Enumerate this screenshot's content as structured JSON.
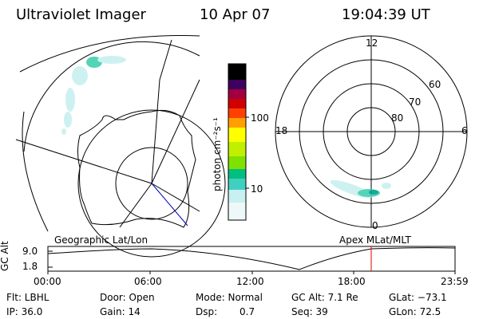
{
  "header": {
    "instrument": "Ultraviolet Imager",
    "date": "10 Apr 07",
    "time": "19:04:39 UT"
  },
  "colorbar": {
    "label": "photon cm⁻²s⁻¹",
    "ticks": [
      "100",
      "10"
    ]
  },
  "polar_plot": {
    "hour_labels": {
      "top": "12",
      "left": "18",
      "right": "6",
      "bottom": "0"
    },
    "lat_labels": [
      "60",
      "70",
      "80"
    ]
  },
  "labels": {
    "geo": "Geographic Lat/Lon",
    "apex": "Apex MLat/MLT"
  },
  "timeline": {
    "ylabel": "GC Alt",
    "ticks_y": [
      "9.0",
      "1.8"
    ],
    "ticks_x": [
      "00:00",
      "06:00",
      "12:00",
      "18:00",
      "23:59"
    ]
  },
  "footer": {
    "row1": {
      "flt": "Flt: LBHL",
      "door": "Door: Open",
      "mode": "Mode: Normal",
      "gcalt": "GC Alt: 7.1 Re",
      "glat": "GLat: −73.1"
    },
    "row2": {
      "ip": "IP: 36.0",
      "gain": "Gain: 14",
      "dsp_label": "Dsp:",
      "dsp_value": "0.7",
      "seq": "Seq: 39",
      "glon": "GLon:  72.5"
    }
  },
  "colors": {
    "colorbar": [
      "#ffffff",
      "#c8f0f0",
      "#40d0c0",
      "#00c080",
      "#80e000",
      "#ffff00",
      "#ffa000",
      "#ff4000",
      "#d00000",
      "#a00040",
      "#400060",
      "#000000"
    ]
  }
}
